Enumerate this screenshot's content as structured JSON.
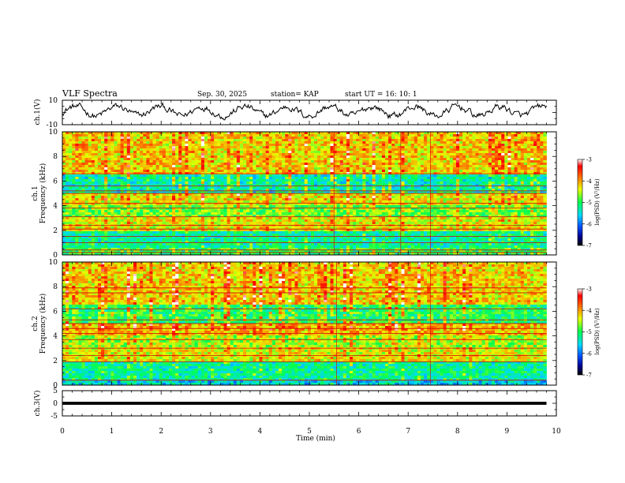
{
  "header": {
    "title": "VLF Spectra",
    "date": "Sep. 30, 2025",
    "station": "station= KAP",
    "start": "start  UT =   16: 10: 1"
  },
  "colorbar_label": "log(PSD) (V²/Hz)",
  "colors": {
    "background": "#ffffff",
    "axis": "#000000"
  },
  "chart_data": [
    {
      "type": "line",
      "name": "ch1-waveform",
      "ylabel": "ch.1(V)",
      "ylim": [
        -10,
        10
      ],
      "ytick_labels": [
        "10",
        "-10"
      ],
      "xlim": [
        0,
        10
      ],
      "waveform_range_x": [
        0,
        9.8
      ],
      "approx_mean": 1,
      "approx_amplitude": 8
    },
    {
      "type": "heatmap",
      "name": "ch1-spectrogram",
      "ylabel": "ch.1\nFrequency (kHz)",
      "ylim": [
        0,
        10
      ],
      "ytick_labels": [
        "0",
        "2",
        "4",
        "6",
        "8",
        "10"
      ],
      "xlim": [
        0,
        10
      ],
      "data_range_x": [
        0,
        9.8
      ],
      "colorbar": {
        "min": -7,
        "max": -3,
        "tick_labels": [
          "-3",
          "-4",
          "-5",
          "-6",
          "-7"
        ]
      },
      "bands_khz": [
        {
          "from": 0,
          "to": 0.5,
          "level": -5.0
        },
        {
          "from": 0.5,
          "to": 2,
          "level": -5.3
        },
        {
          "from": 2,
          "to": 3,
          "level": -4.4
        },
        {
          "from": 3,
          "to": 4,
          "level": -4.8
        },
        {
          "from": 4,
          "to": 5,
          "level": -4.4
        },
        {
          "from": 5,
          "to": 6.5,
          "level": -5.4
        },
        {
          "from": 6.5,
          "to": 10,
          "level": -4.3
        }
      ],
      "horizontal_lines_khz": [
        0.2,
        0.4,
        1.0,
        1.5,
        2.1,
        2.4,
        3.1,
        3.8,
        4.2,
        5.0,
        5.2,
        5.6,
        6.6
      ],
      "vertical_lines_min": [
        5.5,
        6.85,
        7.45
      ]
    },
    {
      "type": "heatmap",
      "name": "ch2-spectrogram",
      "ylabel": "ch.2\nFrequency (kHz)",
      "ylim": [
        0,
        10
      ],
      "ytick_labels": [
        "0",
        "2",
        "4",
        "6",
        "8",
        "10"
      ],
      "xlim": [
        0,
        10
      ],
      "data_range_x": [
        0,
        9.8
      ],
      "colorbar": {
        "min": -7,
        "max": -3,
        "tick_labels": [
          "-3",
          "-4",
          "-5",
          "-6",
          "-7"
        ]
      },
      "bands_khz": [
        {
          "from": 0,
          "to": 0.3,
          "level": -5.6
        },
        {
          "from": 0.3,
          "to": 2,
          "level": -5.3
        },
        {
          "from": 2,
          "to": 3,
          "level": -4.4
        },
        {
          "from": 3,
          "to": 4,
          "level": -4.6
        },
        {
          "from": 4,
          "to": 5,
          "level": -4.2
        },
        {
          "from": 5,
          "to": 6.5,
          "level": -5.1
        },
        {
          "from": 6.5,
          "to": 10,
          "level": -4.3
        }
      ],
      "horizontal_lines_khz": [
        0.4,
        1.9,
        2.4,
        3.0,
        3.7,
        4.2,
        4.6,
        5.0,
        5.3,
        6.2,
        7.5,
        7.9
      ],
      "vertical_lines_min": [
        5.55,
        7.45
      ]
    },
    {
      "type": "line",
      "name": "ch3-waveform",
      "ylabel": "ch.3(V)",
      "ylim": [
        -5,
        5
      ],
      "ytick_labels": [
        "5",
        "0",
        "-5"
      ],
      "xlim": [
        0,
        10
      ],
      "waveform_range_x": [
        0,
        9.8
      ],
      "band_range_v": [
        -0.6,
        0.6
      ],
      "xlabel": "Time  (min)",
      "xtick_labels": [
        "0",
        "1",
        "2",
        "3",
        "4",
        "5",
        "6",
        "7",
        "8",
        "9",
        "10"
      ]
    }
  ]
}
